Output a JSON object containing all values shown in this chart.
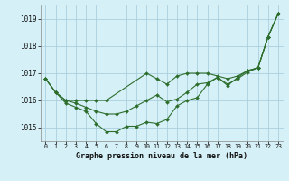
{
  "xlabel": "Graphe pression niveau de la mer (hPa)",
  "background_color": "#d6f0f7",
  "grid_color": "#aacfde",
  "line_color": "#2d6e2d",
  "ylim": [
    1014.5,
    1019.5
  ],
  "yticks": [
    1015,
    1016,
    1017,
    1018,
    1019
  ],
  "xlim": [
    -0.5,
    23.5
  ],
  "xticks": [
    0,
    1,
    2,
    3,
    4,
    5,
    6,
    7,
    8,
    9,
    10,
    11,
    12,
    13,
    14,
    15,
    16,
    17,
    18,
    19,
    20,
    21,
    22,
    23
  ],
  "series": [
    {
      "x": [
        0,
        1,
        2,
        3,
        4,
        5,
        6,
        10,
        11,
        12,
        13,
        14,
        15,
        16,
        17,
        18,
        19,
        20,
        21,
        22,
        23
      ],
      "y": [
        1016.8,
        1016.3,
        1016.0,
        1016.0,
        1016.0,
        1016.0,
        1016.0,
        1017.0,
        1016.8,
        1016.6,
        1016.9,
        1017.0,
        1017.0,
        1017.0,
        1016.9,
        1016.8,
        1016.9,
        1017.1,
        1017.2,
        1018.35,
        1019.2
      ]
    },
    {
      "x": [
        0,
        1,
        2,
        3,
        4,
        5,
        6,
        7,
        8,
        9,
        10,
        11,
        12,
        13,
        14,
        15,
        16,
        17,
        18,
        19,
        20,
        21,
        22,
        23
      ],
      "y": [
        1016.8,
        1016.3,
        1016.0,
        1015.9,
        1015.75,
        1015.6,
        1015.5,
        1015.5,
        1015.6,
        1015.8,
        1016.0,
        1016.2,
        1015.95,
        1016.05,
        1016.3,
        1016.6,
        1016.65,
        1016.85,
        1016.6,
        1016.8,
        1017.05,
        1017.2,
        1018.35,
        1019.2
      ]
    },
    {
      "x": [
        0,
        1,
        2,
        3,
        4,
        5,
        6,
        7,
        8,
        9,
        10,
        11,
        12,
        13,
        14,
        15,
        16,
        17,
        18,
        19,
        20,
        21,
        22,
        23
      ],
      "y": [
        1016.8,
        1016.3,
        1015.9,
        1015.75,
        1015.6,
        1015.15,
        1014.85,
        1014.85,
        1015.05,
        1015.05,
        1015.2,
        1015.15,
        1015.3,
        1015.8,
        1016.0,
        1016.1,
        1016.6,
        1016.85,
        1016.55,
        1016.85,
        1017.1,
        1017.2,
        1018.35,
        1019.2
      ]
    }
  ]
}
